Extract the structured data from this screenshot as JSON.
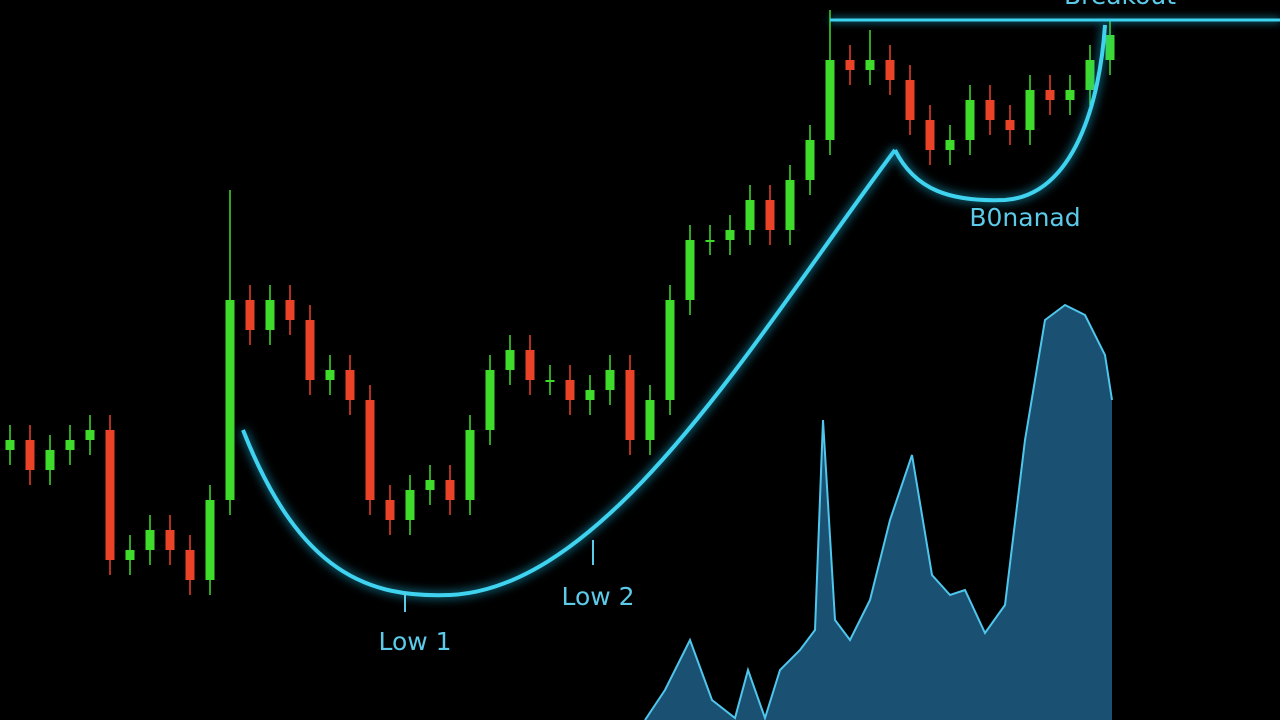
{
  "chart_data": [
    {
      "type": "candlestick",
      "x": [
        0,
        1,
        2,
        3,
        4,
        5,
        6,
        7,
        8,
        9,
        10,
        11,
        12,
        13,
        14,
        15,
        16,
        17,
        18,
        19,
        20,
        21,
        22,
        23,
        24,
        25,
        26,
        27,
        28,
        29,
        30,
        31,
        32,
        33,
        34,
        35,
        36,
        37,
        38,
        39,
        40,
        41,
        42,
        43,
        44,
        45,
        46,
        47,
        48,
        49,
        50,
        51,
        52,
        53,
        54,
        55
      ],
      "open": [
        270,
        280,
        250,
        270,
        280,
        290,
        160,
        170,
        190,
        170,
        140,
        220,
        420,
        390,
        420,
        400,
        340,
        350,
        320,
        220,
        200,
        230,
        240,
        220,
        290,
        350,
        370,
        340,
        340,
        320,
        330,
        350,
        280,
        320,
        420,
        480,
        480,
        490,
        520,
        490,
        540,
        580,
        660,
        650,
        660,
        640,
        600,
        570,
        580,
        620,
        600,
        590,
        630,
        620,
        630,
        660
      ],
      "high": [
        295,
        295,
        285,
        295,
        305,
        305,
        185,
        205,
        205,
        185,
        235,
        530,
        435,
        435,
        435,
        415,
        365,
        365,
        335,
        235,
        245,
        255,
        255,
        305,
        365,
        385,
        385,
        355,
        355,
        345,
        365,
        365,
        335,
        435,
        495,
        495,
        505,
        535,
        535,
        555,
        595,
        710,
        675,
        690,
        675,
        655,
        615,
        595,
        635,
        635,
        615,
        645,
        645,
        645,
        675,
        700
      ],
      "low": [
        255,
        235,
        235,
        255,
        265,
        145,
        145,
        155,
        155,
        125,
        125,
        205,
        375,
        375,
        385,
        325,
        325,
        305,
        205,
        185,
        185,
        215,
        205,
        205,
        275,
        335,
        325,
        325,
        305,
        305,
        315,
        265,
        265,
        305,
        405,
        465,
        465,
        475,
        475,
        475,
        525,
        565,
        635,
        635,
        625,
        585,
        555,
        555,
        565,
        585,
        575,
        575,
        605,
        605,
        615,
        645
      ],
      "close": [
        280,
        250,
        270,
        280,
        290,
        160,
        170,
        190,
        170,
        140,
        220,
        420,
        390,
        420,
        400,
        340,
        350,
        320,
        220,
        200,
        230,
        240,
        220,
        290,
        350,
        370,
        340,
        340,
        320,
        330,
        350,
        280,
        320,
        420,
        480,
        480,
        490,
        520,
        490,
        540,
        580,
        660,
        650,
        660,
        640,
        600,
        570,
        580,
        620,
        600,
        590,
        630,
        620,
        630,
        660,
        685
      ],
      "up_color": "#3fdc2c",
      "down_color": "#ea4327",
      "xlim": [
        -0.5,
        63.5
      ],
      "ylim": [
        0,
        720
      ],
      "breakout_level": 700,
      "annotations": [
        {
          "text": "Breakout"
        },
        {
          "text": "B0nanad"
        },
        {
          "text": "Low 1"
        },
        {
          "text": "Low 2"
        }
      ]
    },
    {
      "type": "area",
      "x": [
        31.75,
        32.75,
        34,
        35.1,
        36.25,
        36.9,
        37.75,
        38.5,
        39.5,
        40.25,
        40.65,
        41.25,
        42,
        43,
        44,
        45.1,
        46.1,
        47,
        47.75,
        48.75,
        49.75,
        50.75,
        51.75,
        52.75,
        53.75,
        54.75,
        55.1
      ],
      "values": [
        0,
        30,
        80,
        20,
        2,
        50,
        2,
        50,
        70,
        90,
        300,
        100,
        80,
        120,
        200,
        265,
        145,
        125,
        130,
        87,
        115,
        280,
        400,
        415,
        405,
        365,
        320
      ],
      "color": "#1d5a80",
      "line_color": "#4fc6ec",
      "xlim": [
        -0.5,
        63.5
      ],
      "ylim": [
        0,
        720
      ]
    }
  ]
}
